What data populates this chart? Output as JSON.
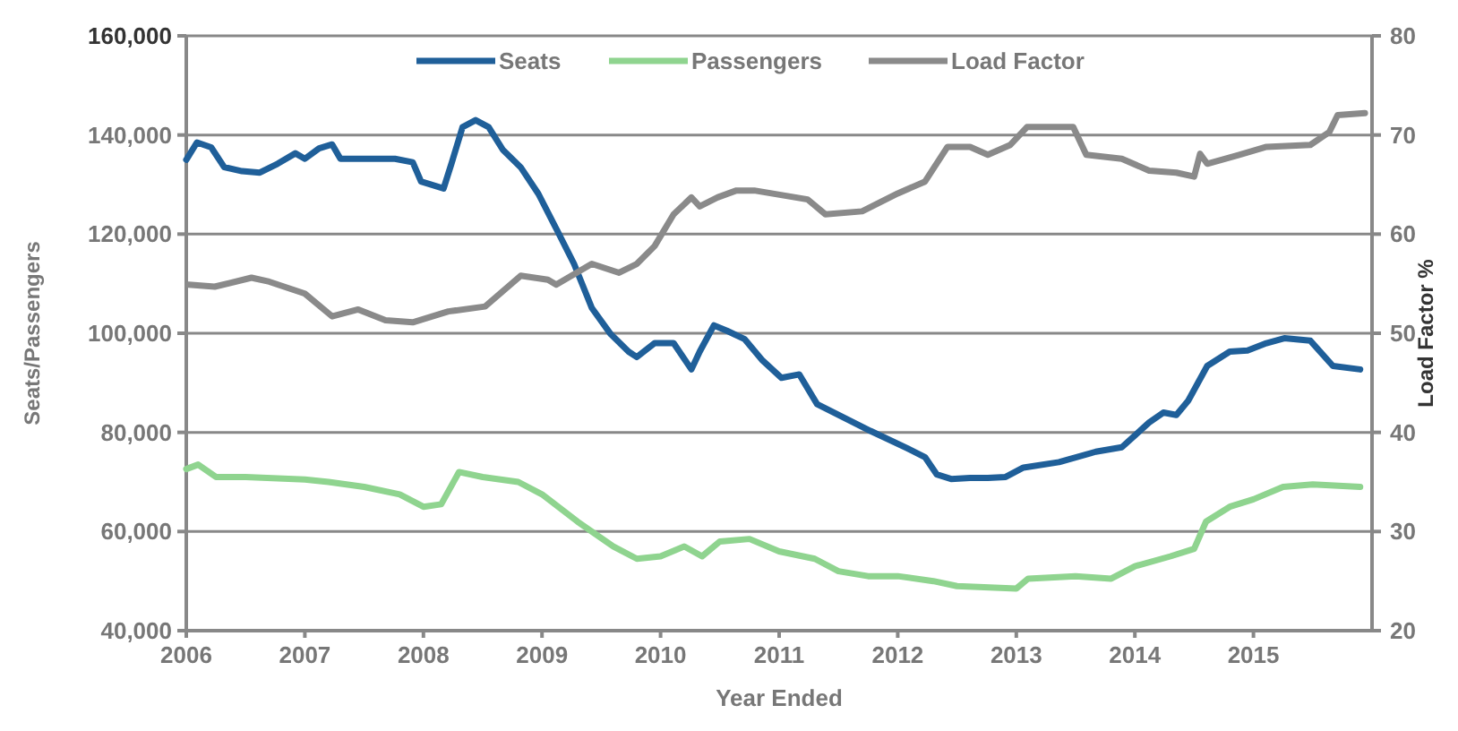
{
  "chart_data": {
    "type": "line",
    "xlabel": "Year Ended",
    "ylabel": "Seats/Passengers",
    "y2label": "Load Factor %",
    "xlim": [
      2006,
      2016
    ],
    "xticks": [
      2006,
      2007,
      2008,
      2009,
      2010,
      2011,
      2012,
      2013,
      2014,
      2015
    ],
    "ylim": [
      40000,
      160000
    ],
    "yticks": [
      {
        "value": 40000,
        "label": "40,000"
      },
      {
        "value": 60000,
        "label": "60,000"
      },
      {
        "value": 80000,
        "label": "80,000"
      },
      {
        "value": 100000,
        "label": "100,000"
      },
      {
        "value": 120000,
        "label": "120,000"
      },
      {
        "value": 140000,
        "label": "140,000"
      },
      {
        "value": 160000,
        "label": "160,000"
      }
    ],
    "y2lim": [
      20,
      80
    ],
    "y2ticks": [
      20,
      30,
      40,
      50,
      60,
      70,
      80
    ],
    "grid": "y",
    "legend": "top",
    "line_style": "solid",
    "marker": "none",
    "series": [
      {
        "name": "Seats",
        "color": "#1f5f99",
        "x": [
          2006.0,
          2006.09,
          2006.21,
          2006.32,
          2006.47,
          2006.62,
          2006.77,
          2006.92,
          2007.0,
          2007.12,
          2007.23,
          2007.3,
          2007.76,
          2007.91,
          2007.98,
          2008.17,
          2008.24,
          2008.33,
          2008.44,
          2008.55,
          2008.67,
          2008.82,
          2008.97,
          2009.12,
          2009.27,
          2009.42,
          2009.58,
          2009.73,
          2009.8,
          2009.95,
          2010.11,
          2010.26,
          2010.33,
          2010.45,
          2010.56,
          2010.71,
          2010.86,
          2011.02,
          2011.17,
          2011.32,
          2011.47,
          2011.62,
          2011.77,
          2012.08,
          2012.23,
          2012.33,
          2012.45,
          2012.61,
          2012.76,
          2012.91,
          2013.06,
          2013.36,
          2013.67,
          2013.89,
          2014.12,
          2014.24,
          2014.35,
          2014.45,
          2014.61,
          2014.8,
          2014.95,
          2015.11,
          2015.26,
          2015.48,
          2015.67,
          2015.9
        ],
        "values": [
          135000,
          138500,
          137500,
          133500,
          132700,
          132400,
          134200,
          136300,
          135200,
          137300,
          138100,
          135200,
          135200,
          134500,
          130600,
          129200,
          134500,
          141600,
          143000,
          141600,
          137000,
          133500,
          128100,
          121100,
          114000,
          105100,
          99800,
          96300,
          95200,
          98000,
          98000,
          92700,
          96300,
          101600,
          100500,
          98800,
          94500,
          91000,
          91700,
          85700,
          83900,
          82100,
          80300,
          76800,
          75000,
          71500,
          70600,
          70800,
          70800,
          71000,
          72900,
          74000,
          76100,
          77000,
          82000,
          84000,
          83500,
          86400,
          93400,
          96300,
          96500,
          98000,
          99000,
          98500,
          93400,
          92700
        ]
      },
      {
        "name": "Passengers",
        "color": "#8fd48f",
        "x": [
          2006.0,
          2006.1,
          2006.25,
          2006.5,
          2007.0,
          2007.2,
          2007.5,
          2007.8,
          2008.0,
          2008.15,
          2008.3,
          2008.5,
          2008.8,
          2009.0,
          2009.3,
          2009.6,
          2009.8,
          2010.0,
          2010.2,
          2010.35,
          2010.5,
          2010.75,
          2011.0,
          2011.3,
          2011.5,
          2011.75,
          2012.0,
          2012.3,
          2012.5,
          2013.0,
          2013.1,
          2013.5,
          2013.8,
          2014.0,
          2014.3,
          2014.5,
          2014.6,
          2014.8,
          2015.0,
          2015.25,
          2015.5,
          2015.9
        ],
        "values": [
          72600,
          73500,
          71000,
          71000,
          70500,
          70000,
          69000,
          67500,
          65000,
          65500,
          72000,
          71000,
          70000,
          67500,
          62000,
          57000,
          54500,
          55000,
          57000,
          55000,
          58000,
          58500,
          56000,
          54500,
          52000,
          51000,
          51000,
          50000,
          49000,
          48500,
          50500,
          51000,
          50500,
          53000,
          55000,
          56500,
          62000,
          65000,
          66500,
          69000,
          69500,
          69000
        ]
      },
      {
        "name": "Load Factor",
        "color": "#8a8a8a",
        "axis": "y2",
        "x": [
          2006.02,
          2006.24,
          2006.55,
          2006.7,
          2007.0,
          2007.23,
          2007.45,
          2007.68,
          2007.91,
          2008.21,
          2008.52,
          2008.82,
          2009.05,
          2009.12,
          2009.42,
          2009.65,
          2009.8,
          2009.95,
          2010.11,
          2010.26,
          2010.33,
          2010.48,
          2010.64,
          2010.79,
          2011.24,
          2011.39,
          2011.7,
          2012.0,
          2012.23,
          2012.42,
          2012.61,
          2012.76,
          2012.95,
          2013.09,
          2013.29,
          2013.48,
          2013.59,
          2013.89,
          2014.12,
          2014.35,
          2014.5,
          2014.55,
          2014.61,
          2014.88,
          2015.11,
          2015.48,
          2015.64,
          2015.71,
          2015.94
        ],
        "values": [
          54.9,
          54.7,
          55.6,
          55.2,
          54.0,
          51.7,
          52.4,
          51.3,
          51.1,
          52.2,
          52.7,
          55.8,
          55.4,
          54.9,
          57.0,
          56.1,
          57.0,
          58.8,
          62.0,
          63.7,
          62.8,
          63.7,
          64.4,
          64.4,
          63.5,
          62.0,
          62.3,
          64.1,
          65.3,
          68.8,
          68.8,
          68.0,
          69.0,
          70.8,
          70.8,
          70.8,
          68.0,
          67.6,
          66.4,
          66.2,
          65.8,
          68.1,
          67.1,
          68.0,
          68.8,
          69.0,
          70.3,
          72.0,
          72.2
        ]
      }
    ]
  }
}
